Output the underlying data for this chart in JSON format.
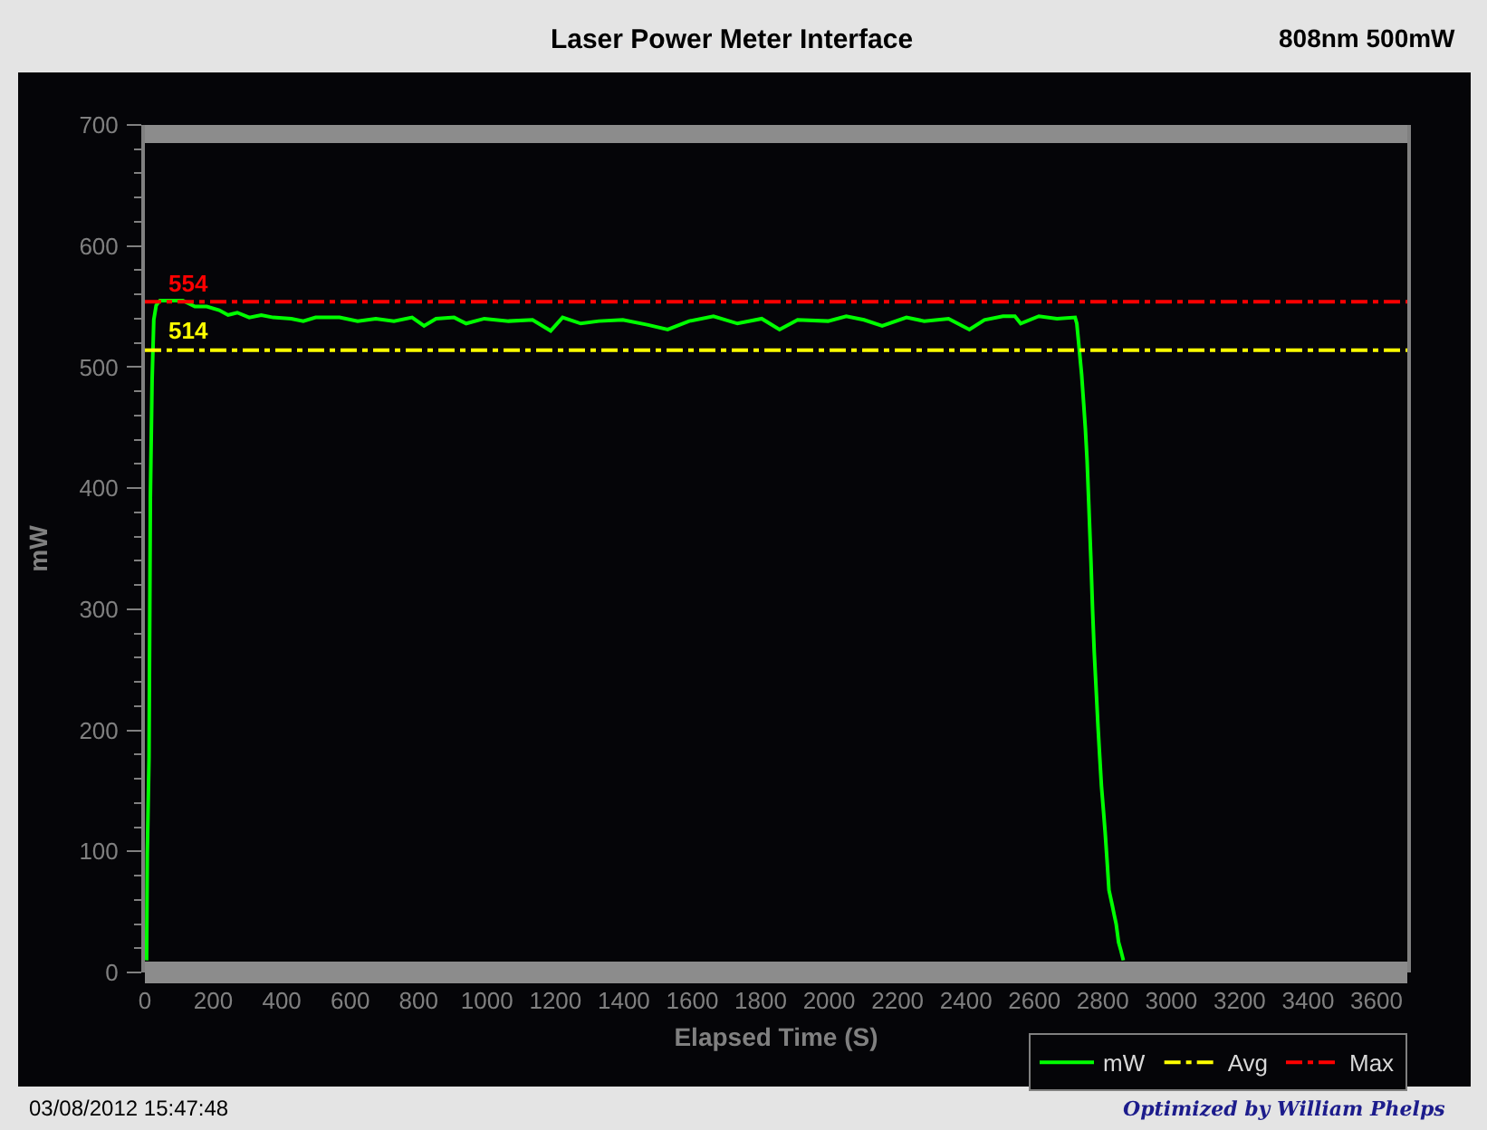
{
  "chart_data": {
    "type": "line",
    "title": "Laser Power Meter Interface",
    "subtitle": "808nm 500mW",
    "xlabel": "Elapsed Time (S)",
    "ylabel": "mW",
    "annotations": [
      "03/08/2012 15:47:48",
      "Optimized by William Phelps",
      {
        "text": "554",
        "x": 58,
        "y": 554
      },
      {
        "text": "514",
        "x": 58,
        "y": 514
      }
    ],
    "series": [
      {
        "name": "mW",
        "color": "#00ff00",
        "x": [
          5,
          7,
          12,
          16,
          21,
          26,
          33,
          44,
          111,
          146,
          181,
          217,
          243,
          270,
          305,
          340,
          375,
          428,
          463,
          499,
          569,
          622,
          675,
          728,
          781,
          816,
          851,
          904,
          939,
          992,
          1063,
          1133,
          1186,
          1221,
          1274,
          1327,
          1397,
          1468,
          1528,
          1591,
          1662,
          1732,
          1803,
          1855,
          1908,
          1997,
          2050,
          2102,
          2155,
          2226,
          2278,
          2349,
          2410,
          2454,
          2508,
          2543,
          2560,
          2613,
          2666,
          2719,
          2724,
          2731,
          2738,
          2744,
          2749,
          2754,
          2759,
          2765,
          2770,
          2775,
          2781,
          2786,
          2791,
          2796,
          2802,
          2807,
          2812,
          2818,
          2828,
          2833,
          2839,
          2846,
          2853,
          2860
        ],
        "values": [
          10,
          98,
          177,
          392,
          489,
          539,
          551,
          555,
          555,
          550,
          550,
          547,
          543,
          545,
          541,
          543,
          541,
          540,
          538,
          541,
          541,
          538,
          540,
          538,
          541,
          534,
          540,
          541,
          536,
          540,
          538,
          539,
          530,
          541,
          536,
          538,
          539,
          535,
          531,
          538,
          542,
          536,
          540,
          531,
          539,
          538,
          542,
          539,
          534,
          541,
          538,
          540,
          531,
          539,
          542,
          542,
          536,
          542,
          540,
          541,
          536,
          515,
          494,
          470,
          449,
          423,
          387,
          342,
          300,
          264,
          231,
          203,
          178,
          154,
          133,
          115,
          94,
          68,
          55,
          48,
          40,
          25,
          18,
          10
        ]
      }
    ],
    "ref_lines": [
      {
        "axis": "y",
        "value": 514,
        "label": "Avg",
        "color": "#ffff00",
        "line_style": "dashed"
      },
      {
        "axis": "y",
        "value": 554,
        "label": "Max",
        "color": "#ff0000",
        "line_style": "dashed"
      }
    ],
    "xlim": [
      0,
      3690
    ],
    "xticks": [
      0,
      200,
      400,
      600,
      800,
      1000,
      1200,
      1400,
      1600,
      1800,
      2000,
      2200,
      2400,
      2600,
      2800,
      3000,
      3200,
      3400,
      3600
    ],
    "ylim": [
      0,
      700
    ],
    "yticks": [
      0,
      {
        "value": 20,
        "label": null
      },
      {
        "value": 40,
        "label": null
      },
      {
        "value": 60,
        "label": null
      },
      {
        "value": 80,
        "label": null
      },
      100,
      {
        "value": 120,
        "label": null
      },
      {
        "value": 140,
        "label": null
      },
      {
        "value": 160,
        "label": null
      },
      {
        "value": 180,
        "label": null
      },
      200,
      {
        "value": 220,
        "label": null
      },
      {
        "value": 240,
        "label": null
      },
      {
        "value": 260,
        "label": null
      },
      {
        "value": 280,
        "label": null
      },
      300,
      {
        "value": 320,
        "label": null
      },
      {
        "value": 340,
        "label": null
      },
      {
        "value": 360,
        "label": null
      },
      {
        "value": 380,
        "label": null
      },
      400,
      {
        "value": 420,
        "label": null
      },
      {
        "value": 440,
        "label": null
      },
      {
        "value": 460,
        "label": null
      },
      {
        "value": 480,
        "label": null
      },
      500,
      {
        "value": 520,
        "label": null
      },
      {
        "value": 540,
        "label": null
      },
      {
        "value": 560,
        "label": null
      },
      {
        "value": 580,
        "label": null
      },
      600,
      {
        "value": 620,
        "label": null
      },
      {
        "value": 640,
        "label": null
      },
      {
        "value": 660,
        "label": null
      },
      {
        "value": 680,
        "label": null
      },
      700
    ],
    "grid": false,
    "legend": "bottom right",
    "line_style": "solid"
  }
}
